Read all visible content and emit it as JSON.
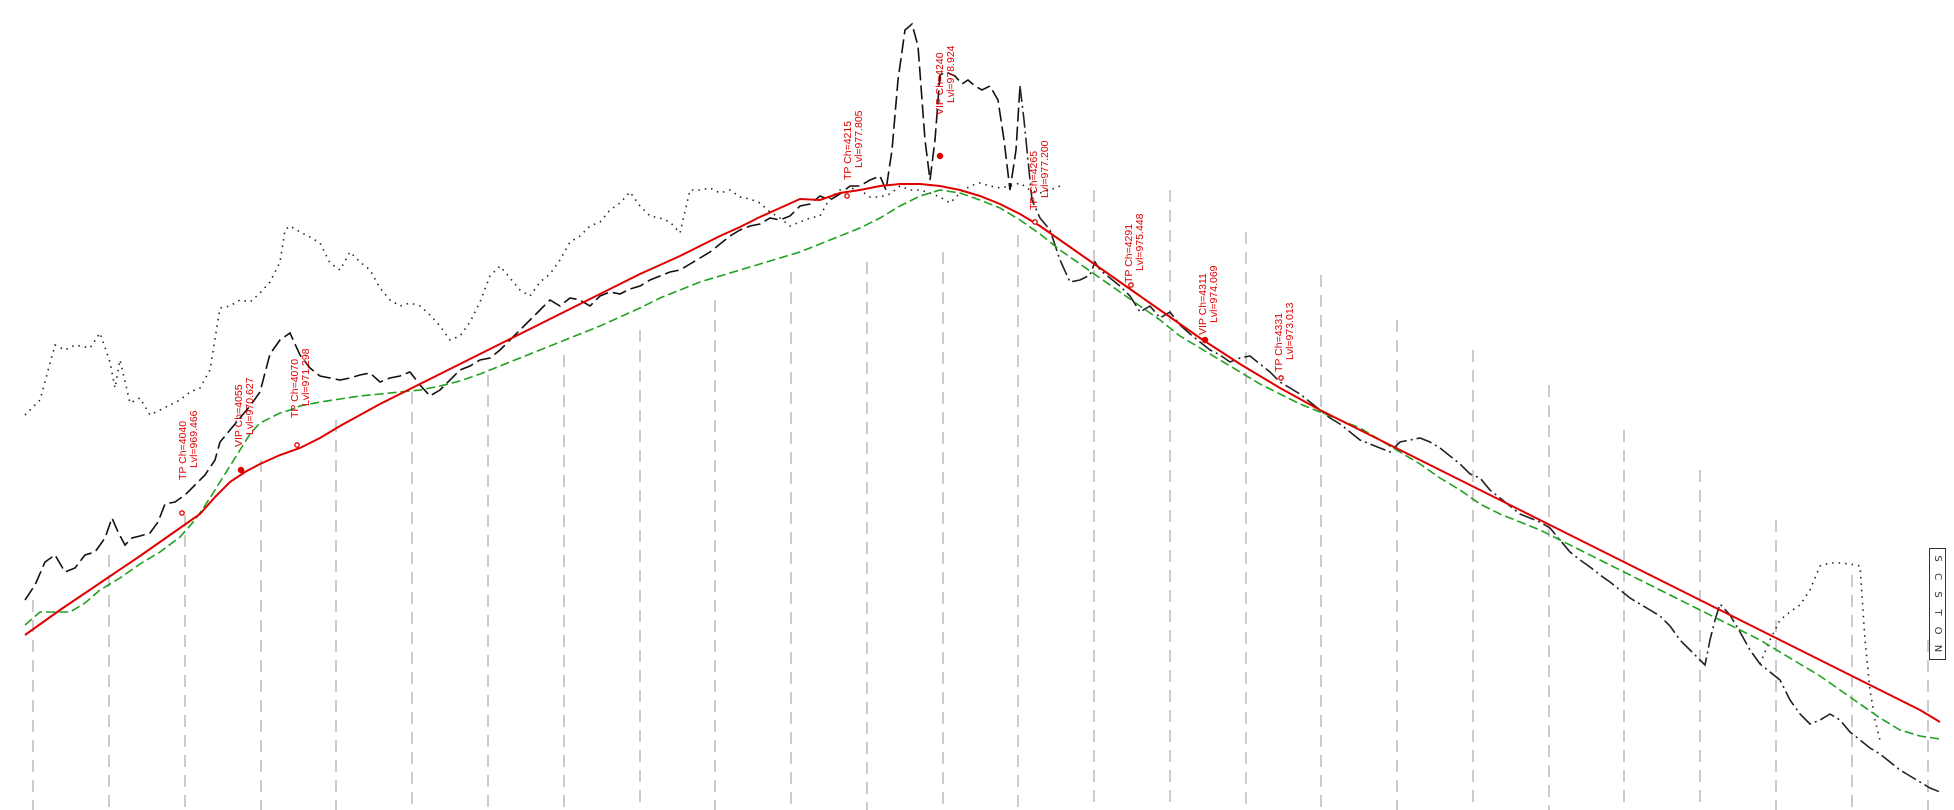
{
  "colors": {
    "design_line": "#e00000",
    "design_offset": "#22a022",
    "ground_dash": "#111111",
    "ground_dashdot": "#222222",
    "ground_dot": "#222222",
    "chainage_grid": "#b0b0b0"
  },
  "ips": [
    {
      "type": "TP",
      "ch": "Ch=4040",
      "lvl": "Lvl=969.466"
    },
    {
      "type": "VIP",
      "ch": "Ch=4055",
      "lvl": "Lvl=970.627"
    },
    {
      "type": "TP",
      "ch": "Ch=4070",
      "lvl": "Lvl=971.298"
    },
    {
      "type": "TP",
      "ch": "Ch=4215",
      "lvl": "Lvl=977.805"
    },
    {
      "type": "VIP",
      "ch": "Ch=4240",
      "lvl": "Lvl=978.924"
    },
    {
      "type": "TP",
      "ch": "Ch=4265",
      "lvl": "Lvl=977.200"
    },
    {
      "type": "TP",
      "ch": "Ch=4291",
      "lvl": "Lvl=975.448"
    },
    {
      "type": "VIP",
      "ch": "Ch=4311",
      "lvl": "Lvl=974.069"
    },
    {
      "type": "TP",
      "ch": "Ch=4331",
      "lvl": "Lvl=973.013"
    }
  ],
  "edge_box_chars": [
    "S",
    "C",
    "S",
    "T",
    "O",
    "N"
  ]
}
